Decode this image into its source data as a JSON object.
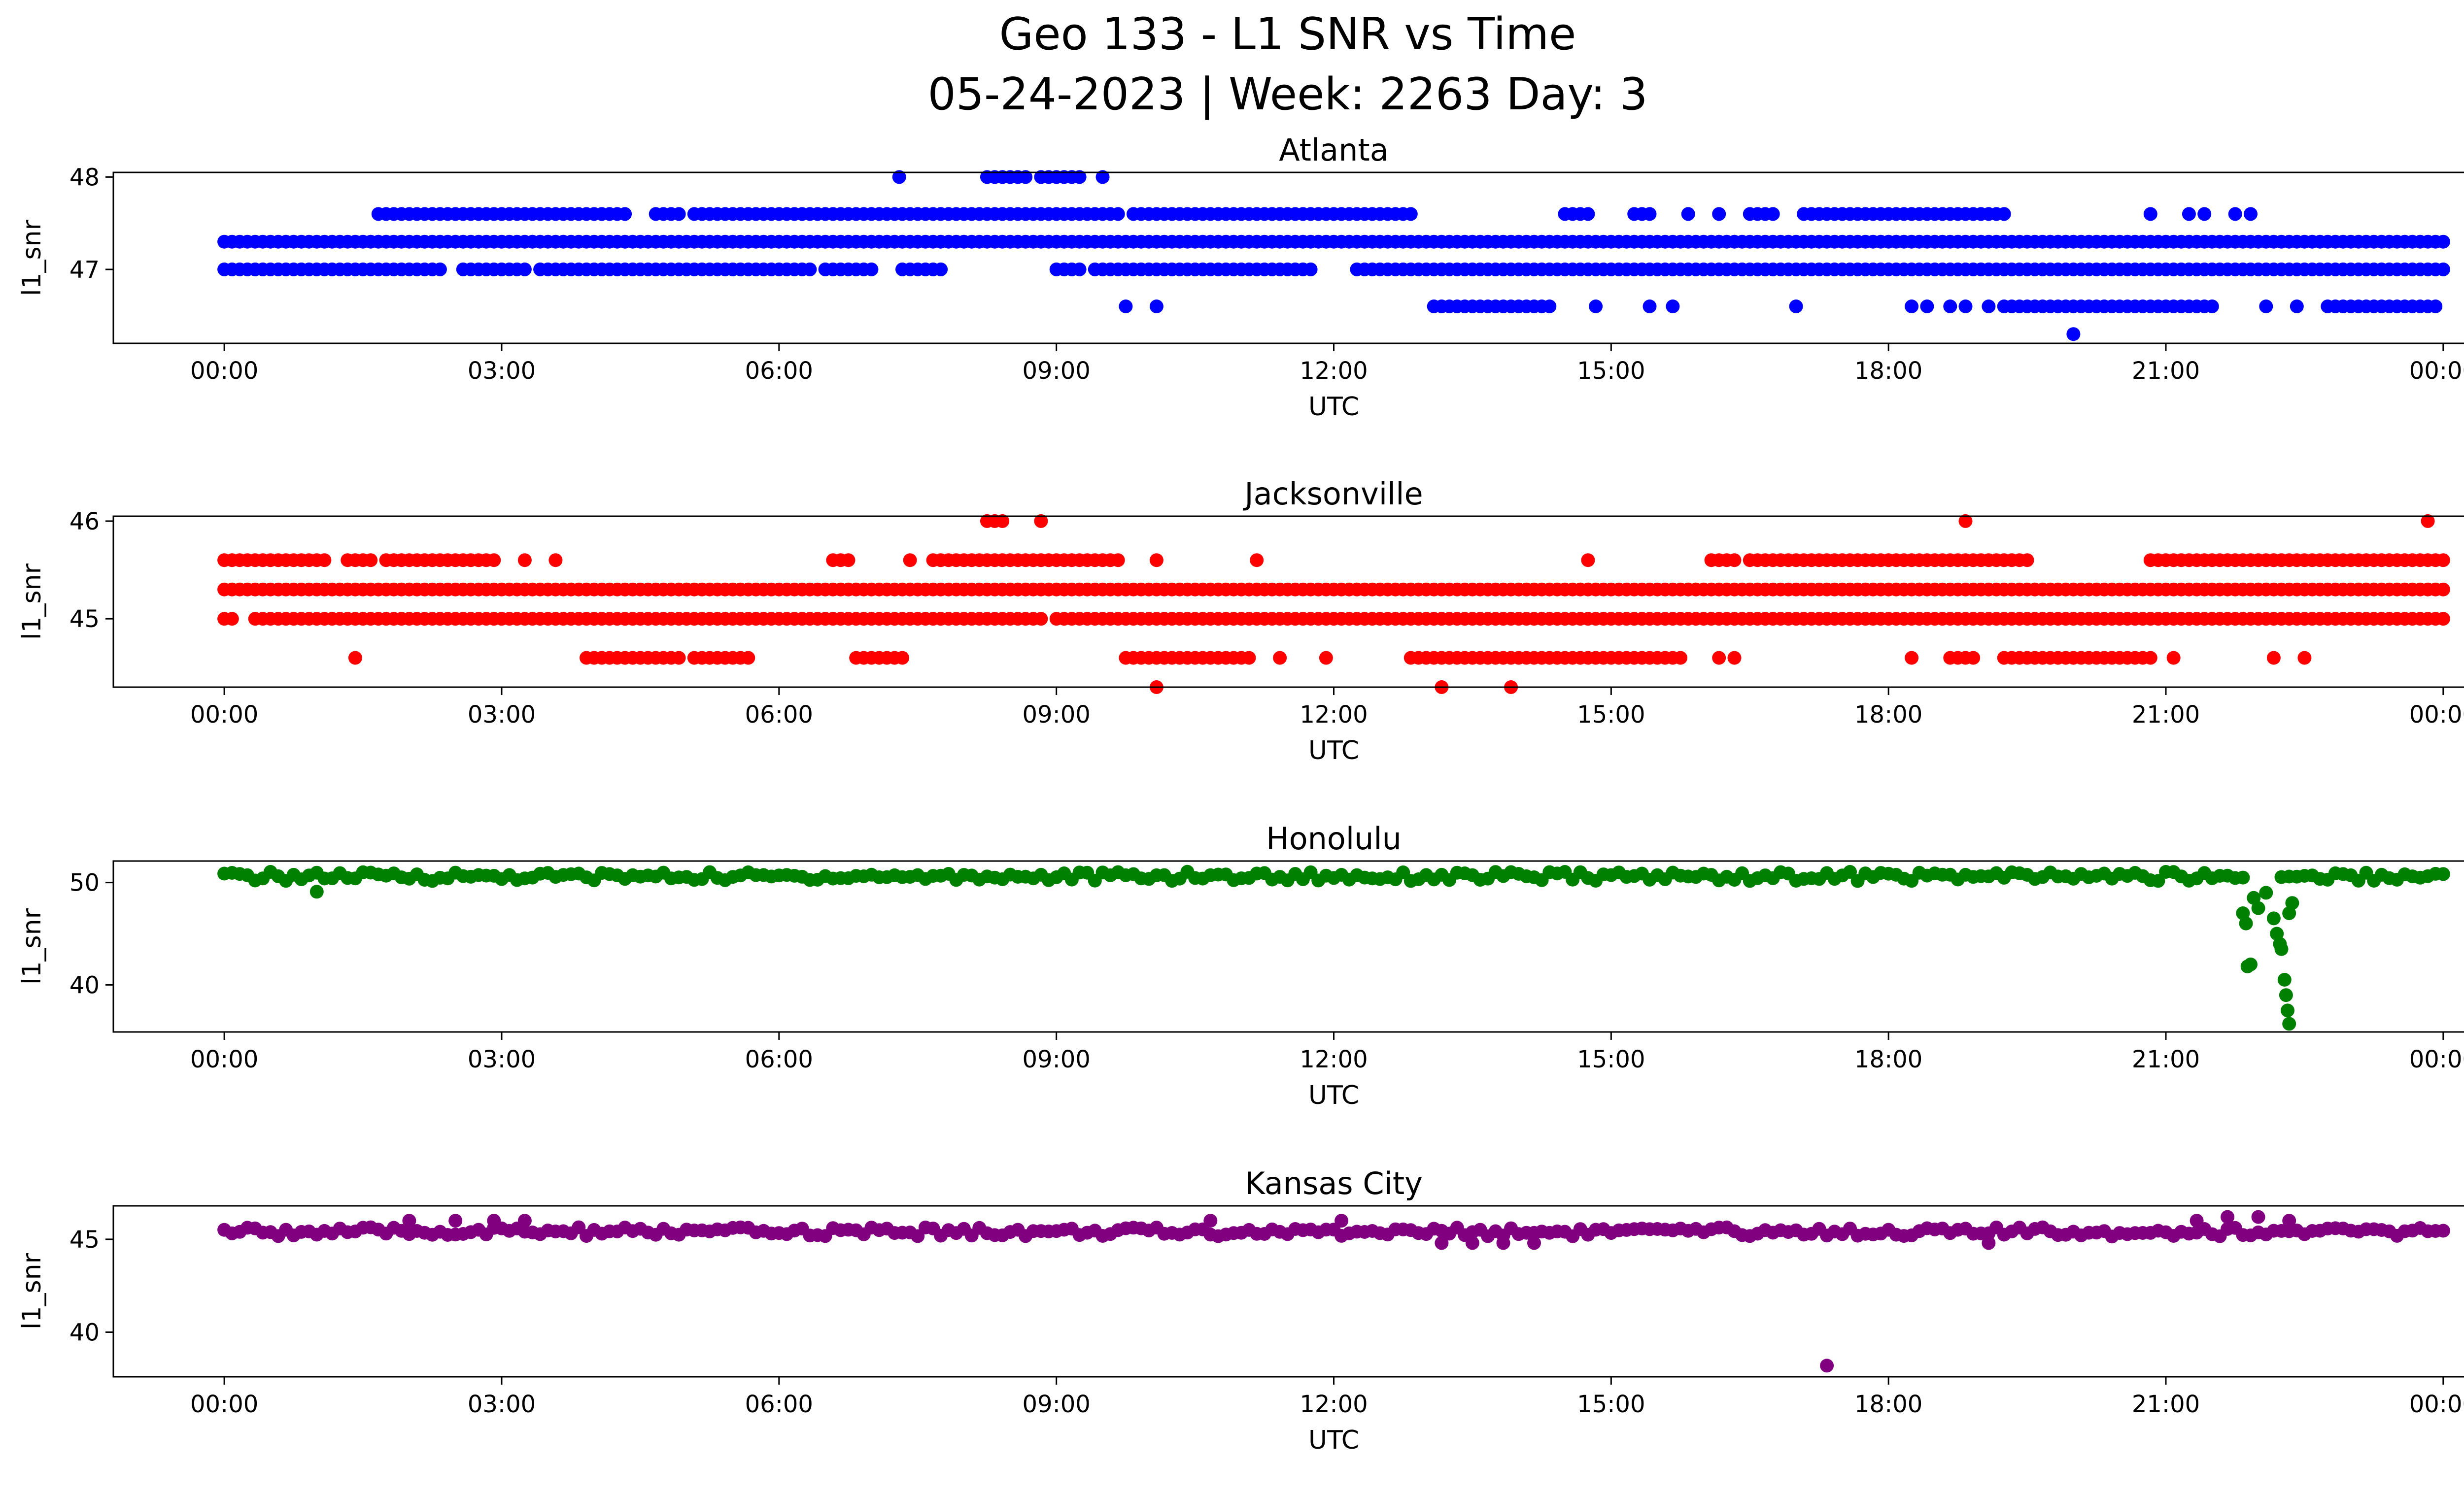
{
  "figure": {
    "title_line1": "Geo 133 - L1 SNR vs Time",
    "title_line2": "05-24-2023 | Week: 2263 Day: 3"
  },
  "chart_data": [
    {
      "type": "scatter",
      "title": "Atlanta",
      "xlabel": "UTC",
      "ylabel": "l1_snr",
      "color": "#0000ff",
      "xlim": [
        "00:00",
        "24:00"
      ],
      "ylim": [
        46.2,
        48.05
      ],
      "yticks": [
        47,
        48
      ],
      "xtick_labels": [
        "00:00",
        "03:00",
        "06:00",
        "09:00",
        "12:00",
        "15:00",
        "18:00",
        "21:00",
        "00:00"
      ],
      "grid": false,
      "series": [
        {
          "values": [
            {
              "y": 47.3,
              "x_ranges": [
                [
                  "00:00",
                  "24:00"
                ]
              ]
            },
            {
              "y": 47.0,
              "x_ranges": [
                [
                  "00:00",
                  "02:20"
                ],
                [
                  "02:35",
                  "03:15"
                ],
                [
                  "03:25",
                  "06:20"
                ],
                [
                  "06:30",
                  "07:00"
                ],
                [
                  "07:20",
                  "07:45"
                ],
                [
                  "09:00",
                  "09:15"
                ],
                [
                  "09:25",
                  "11:45"
                ],
                [
                  "12:15",
                  "24:00"
                ]
              ]
            },
            {
              "y": 47.6,
              "x_ranges": [
                [
                  "01:40",
                  "04:20"
                ],
                [
                  "04:40",
                  "04:55"
                ],
                [
                  "05:05",
                  "09:40"
                ],
                [
                  "09:50",
                  "12:50"
                ],
                [
                  "14:30",
                  "14:45"
                ],
                [
                  "15:15",
                  "15:25"
                ],
                [
                  "16:30",
                  "16:45"
                ],
                [
                  "17:05",
                  "18:40"
                ],
                [
                  "18:45",
                  "19:10"
                ]
              ]
            },
            {
              "y": 48.0,
              "x_ranges": [
                [
                  "08:15",
                  "08:40"
                ],
                [
                  "08:50",
                  "09:15"
                ]
              ]
            },
            {
              "y": 46.6,
              "x_ranges": [
                [
                  "13:05",
                  "14:20"
                ],
                [
                  "19:15",
                  "21:30"
                ],
                [
                  "22:45",
                  "23:55"
                ]
              ]
            }
          ],
          "points": [
            {
              "x": "07:18",
              "y": 48.0
            },
            {
              "x": "09:30",
              "y": 48.0
            },
            {
              "x": "09:45",
              "y": 46.6
            },
            {
              "x": "10:05",
              "y": 46.6
            },
            {
              "x": "14:50",
              "y": 46.6
            },
            {
              "x": "15:25",
              "y": 46.6
            },
            {
              "x": "15:40",
              "y": 46.6
            },
            {
              "x": "16:10",
              "y": 47.6
            },
            {
              "x": "15:50",
              "y": 47.6
            },
            {
              "x": "19:15",
              "y": 47.6
            },
            {
              "x": "20:50",
              "y": 47.6
            },
            {
              "x": "21:15",
              "y": 47.6
            },
            {
              "x": "21:25",
              "y": 47.6
            },
            {
              "x": "21:45",
              "y": 47.6
            },
            {
              "x": "21:55",
              "y": 47.6
            },
            {
              "x": "17:00",
              "y": 46.6
            },
            {
              "x": "18:15",
              "y": 46.6
            },
            {
              "x": "18:25",
              "y": 46.6
            },
            {
              "x": "18:40",
              "y": 46.6
            },
            {
              "x": "18:50",
              "y": 46.6
            },
            {
              "x": "19:05",
              "y": 46.6
            },
            {
              "x": "22:05",
              "y": 46.6
            },
            {
              "x": "22:25",
              "y": 46.6
            },
            {
              "x": "20:00",
              "y": 46.3
            }
          ]
        }
      ]
    },
    {
      "type": "scatter",
      "title": "Jacksonville",
      "xlabel": "UTC",
      "ylabel": "l1_snr",
      "color": "#ff0000",
      "xlim": [
        "00:00",
        "24:00"
      ],
      "ylim": [
        44.3,
        46.05
      ],
      "yticks": [
        45,
        46
      ],
      "xtick_labels": [
        "00:00",
        "03:00",
        "06:00",
        "09:00",
        "12:00",
        "15:00",
        "18:00",
        "21:00",
        "00:00"
      ],
      "grid": false,
      "series": [
        {
          "values": [
            {
              "y": 45.3,
              "x_ranges": [
                [
                  "00:00",
                  "24:00"
                ]
              ]
            },
            {
              "y": 45.0,
              "x_ranges": [
                [
                  "00:00",
                  "00:05"
                ],
                [
                  "00:20",
                  "08:50"
                ],
                [
                  "09:00",
                  "24:00"
                ]
              ]
            },
            {
              "y": 45.6,
              "x_ranges": [
                [
                  "00:00",
                  "01:05"
                ],
                [
                  "01:20",
                  "01:35"
                ],
                [
                  "01:45",
                  "02:55"
                ],
                [
                  "06:35",
                  "06:45"
                ],
                [
                  "07:40",
                  "09:05"
                ],
                [
                  "09:10",
                  "09:40"
                ],
                [
                  "16:05",
                  "16:20"
                ],
                [
                  "16:30",
                  "17:10"
                ],
                [
                  "17:15",
                  "19:30"
                ],
                [
                  "20:50",
                  "24:00"
                ]
              ]
            },
            {
              "y": 44.6,
              "x_ranges": [
                [
                  "03:55",
                  "04:05"
                ],
                [
                  "04:10",
                  "04:55"
                ],
                [
                  "05:05",
                  "05:40"
                ],
                [
                  "06:50",
                  "07:20"
                ],
                [
                  "09:45",
                  "11:05"
                ],
                [
                  "12:50",
                  "15:45"
                ],
                [
                  "18:40",
                  "18:55"
                ],
                [
                  "19:15",
                  "20:50"
                ]
              ]
            },
            {
              "y": 46.0,
              "x_ranges": [
                [
                  "08:15",
                  "08:25"
                ]
              ]
            }
          ],
          "points": [
            {
              "x": "01:25",
              "y": 44.6
            },
            {
              "x": "03:15",
              "y": 45.6
            },
            {
              "x": "03:35",
              "y": 45.6
            },
            {
              "x": "07:25",
              "y": 45.6
            },
            {
              "x": "08:50",
              "y": 46.0
            },
            {
              "x": "10:05",
              "y": 44.3
            },
            {
              "x": "10:05",
              "y": 45.6
            },
            {
              "x": "11:10",
              "y": 45.6
            },
            {
              "x": "11:25",
              "y": 44.6
            },
            {
              "x": "11:55",
              "y": 44.6
            },
            {
              "x": "13:10",
              "y": 44.3
            },
            {
              "x": "13:55",
              "y": 44.3
            },
            {
              "x": "14:45",
              "y": 45.6
            },
            {
              "x": "16:10",
              "y": 44.6
            },
            {
              "x": "16:20",
              "y": 44.6
            },
            {
              "x": "18:15",
              "y": 44.6
            },
            {
              "x": "18:50",
              "y": 46.0
            },
            {
              "x": "21:05",
              "y": 44.6
            },
            {
              "x": "22:10",
              "y": 44.6
            },
            {
              "x": "22:30",
              "y": 44.6
            },
            {
              "x": "22:10",
              "y": 45.6
            },
            {
              "x": "23:50",
              "y": 46.0
            }
          ]
        }
      ]
    },
    {
      "type": "scatter",
      "title": "Honolulu",
      "xlabel": "UTC",
      "ylabel": "l1_snr",
      "color": "#008000",
      "xlim": [
        "00:00",
        "24:00"
      ],
      "ylim": [
        35.4,
        52.1
      ],
      "yticks": [
        40,
        50
      ],
      "xtick_labels": [
        "00:00",
        "03:00",
        "06:00",
        "09:00",
        "12:00",
        "15:00",
        "18:00",
        "21:00",
        "00:00"
      ],
      "grid": false,
      "series": [
        {
          "values": [
            {
              "y": 50.6,
              "x_ranges": [
                [
                  "00:00",
                  "21:50"
                ],
                [
                  "22:15",
                  "24:00"
                ]
              ]
            }
          ],
          "points": [
            {
              "x": "01:00",
              "y": 49.1
            },
            {
              "x": "21:50",
              "y": 47.0
            },
            {
              "x": "21:52",
              "y": 46.0
            },
            {
              "x": "21:53",
              "y": 41.8
            },
            {
              "x": "21:55",
              "y": 42.0
            },
            {
              "x": "21:57",
              "y": 48.5
            },
            {
              "x": "22:00",
              "y": 47.5
            },
            {
              "x": "22:05",
              "y": 49.0
            },
            {
              "x": "22:10",
              "y": 46.5
            },
            {
              "x": "22:12",
              "y": 45.0
            },
            {
              "x": "22:14",
              "y": 44.0
            },
            {
              "x": "22:15",
              "y": 43.5
            },
            {
              "x": "22:17",
              "y": 40.5
            },
            {
              "x": "22:18",
              "y": 39.0
            },
            {
              "x": "22:19",
              "y": 37.5
            },
            {
              "x": "22:20",
              "y": 36.2
            },
            {
              "x": "22:22",
              "y": 48.0
            },
            {
              "x": "22:20",
              "y": 47.0
            }
          ]
        }
      ]
    },
    {
      "type": "scatter",
      "title": "Kansas City",
      "xlabel": "UTC",
      "ylabel": "l1_snr",
      "color": "#800080",
      "xlim": [
        "00:00",
        "24:00"
      ],
      "ylim": [
        37.6,
        46.8
      ],
      "yticks": [
        40,
        45
      ],
      "xtick_labels": [
        "00:00",
        "03:00",
        "06:00",
        "09:00",
        "12:00",
        "15:00",
        "18:00",
        "21:00",
        "00:00"
      ],
      "grid": false,
      "series": [
        {
          "values": [
            {
              "y": 45.4,
              "x_ranges": [
                [
                  "00:00",
                  "24:00"
                ]
              ]
            }
          ],
          "points": [
            {
              "x": "02:00",
              "y": 46.0
            },
            {
              "x": "02:30",
              "y": 46.0
            },
            {
              "x": "02:55",
              "y": 46.0
            },
            {
              "x": "03:15",
              "y": 46.0
            },
            {
              "x": "10:40",
              "y": 46.0
            },
            {
              "x": "12:05",
              "y": 46.0
            },
            {
              "x": "13:10",
              "y": 44.8
            },
            {
              "x": "13:30",
              "y": 44.8
            },
            {
              "x": "13:50",
              "y": 44.8
            },
            {
              "x": "14:10",
              "y": 44.8
            },
            {
              "x": "19:05",
              "y": 44.8
            },
            {
              "x": "21:20",
              "y": 46.0
            },
            {
              "x": "21:40",
              "y": 46.2
            },
            {
              "x": "22:00",
              "y": 46.2
            },
            {
              "x": "22:20",
              "y": 46.0
            },
            {
              "x": "17:20",
              "y": 38.2
            }
          ]
        }
      ]
    }
  ]
}
